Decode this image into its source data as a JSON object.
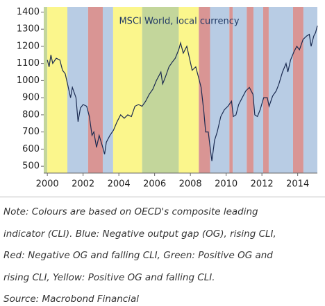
{
  "chart_data": {
    "type": "line",
    "title": "MSCI World, local currency",
    "xlim": [
      1999.8,
      2015.1
    ],
    "ylim": [
      460,
      1430
    ],
    "xticks": [
      2000,
      2002,
      2004,
      2006,
      2008,
      2010,
      2012,
      2014
    ],
    "yticks": [
      500,
      600,
      700,
      800,
      900,
      1000,
      1100,
      1200,
      1300,
      1400
    ],
    "regimes": [
      {
        "start": 1999.8,
        "end": 2000.0,
        "color": "#c3d69b"
      },
      {
        "start": 2000.0,
        "end": 2001.12,
        "color": "#fbf68c"
      },
      {
        "start": 2001.12,
        "end": 2002.28,
        "color": "#b8cce4"
      },
      {
        "start": 2002.28,
        "end": 2003.1,
        "color": "#d99594"
      },
      {
        "start": 2003.1,
        "end": 2003.68,
        "color": "#b8cce4"
      },
      {
        "start": 2003.68,
        "end": 2005.3,
        "color": "#fbf68c"
      },
      {
        "start": 2005.3,
        "end": 2007.35,
        "color": "#c3d69b"
      },
      {
        "start": 2007.35,
        "end": 2008.47,
        "color": "#fbf68c"
      },
      {
        "start": 2008.47,
        "end": 2009.1,
        "color": "#d99594"
      },
      {
        "start": 2009.1,
        "end": 2010.18,
        "color": "#b8cce4"
      },
      {
        "start": 2010.18,
        "end": 2010.37,
        "color": "#d99594"
      },
      {
        "start": 2010.37,
        "end": 2011.15,
        "color": "#b8cce4"
      },
      {
        "start": 2011.15,
        "end": 2011.53,
        "color": "#d99594"
      },
      {
        "start": 2011.53,
        "end": 2012.07,
        "color": "#b8cce4"
      },
      {
        "start": 2012.07,
        "end": 2012.38,
        "color": "#d99594"
      },
      {
        "start": 2012.38,
        "end": 2013.74,
        "color": "#b8cce4"
      },
      {
        "start": 2013.74,
        "end": 2014.32,
        "color": "#d99594"
      },
      {
        "start": 2014.32,
        "end": 2015.1,
        "color": "#b8cce4"
      }
    ],
    "series": [
      {
        "name": "MSCI World, local currency",
        "color": "#1a2a50",
        "x": [
          2000.0,
          2000.1,
          2000.2,
          2000.3,
          2000.5,
          2000.7,
          2000.85,
          2001.0,
          2001.15,
          2001.3,
          2001.4,
          2001.6,
          2001.72,
          2001.85,
          2002.0,
          2002.2,
          2002.35,
          2002.5,
          2002.6,
          2002.75,
          2002.9,
          2003.1,
          2003.2,
          2003.3,
          2003.5,
          2003.7,
          2003.9,
          2004.1,
          2004.3,
          2004.5,
          2004.7,
          2004.9,
          2005.1,
          2005.3,
          2005.5,
          2005.7,
          2005.9,
          2006.1,
          2006.35,
          2006.45,
          2006.6,
          2006.8,
          2007.0,
          2007.15,
          2007.35,
          2007.45,
          2007.6,
          2007.8,
          2007.95,
          2008.1,
          2008.3,
          2008.45,
          2008.6,
          2008.75,
          2008.85,
          2009.0,
          2009.15,
          2009.2,
          2009.35,
          2009.5,
          2009.7,
          2009.9,
          2010.1,
          2010.3,
          2010.4,
          2010.55,
          2010.7,
          2010.9,
          2011.1,
          2011.3,
          2011.5,
          2011.6,
          2011.75,
          2011.9,
          2012.1,
          2012.3,
          2012.4,
          2012.6,
          2012.8,
          2012.95,
          2013.15,
          2013.35,
          2013.45,
          2013.6,
          2013.8,
          2013.95,
          2014.1,
          2014.3,
          2014.5,
          2014.65,
          2014.75,
          2014.9,
          2015.0,
          2015.1
        ],
        "values": [
          1120,
          1080,
          1150,
          1100,
          1130,
          1120,
          1060,
          1040,
          970,
          900,
          960,
          900,
          760,
          840,
          860,
          850,
          790,
          680,
          700,
          610,
          680,
          610,
          570,
          640,
          680,
          710,
          760,
          800,
          780,
          800,
          790,
          850,
          860,
          850,
          880,
          920,
          950,
          1000,
          1050,
          980,
          1020,
          1080,
          1110,
          1130,
          1180,
          1220,
          1160,
          1200,
          1130,
          1060,
          1080,
          1020,
          960,
          820,
          700,
          700,
          570,
          530,
          650,
          700,
          790,
          830,
          850,
          880,
          790,
          800,
          860,
          900,
          940,
          960,
          920,
          800,
          790,
          830,
          900,
          900,
          850,
          910,
          940,
          980,
          1050,
          1100,
          1050,
          1120,
          1170,
          1200,
          1180,
          1240,
          1260,
          1270,
          1200,
          1260,
          1280,
          1320
        ]
      }
    ]
  },
  "notes": [
    "Note: Colours are based on OECD's composite leading",
    "indicator (CLI). Blue: Negative output gap (OG), rising CLI,",
    "Red: Negative OG and  falling CLI, Green: Positive OG and",
    "rising CLI, Yellow: Positive OG and falling CLI.",
    "Source: Macrobond Financial"
  ]
}
